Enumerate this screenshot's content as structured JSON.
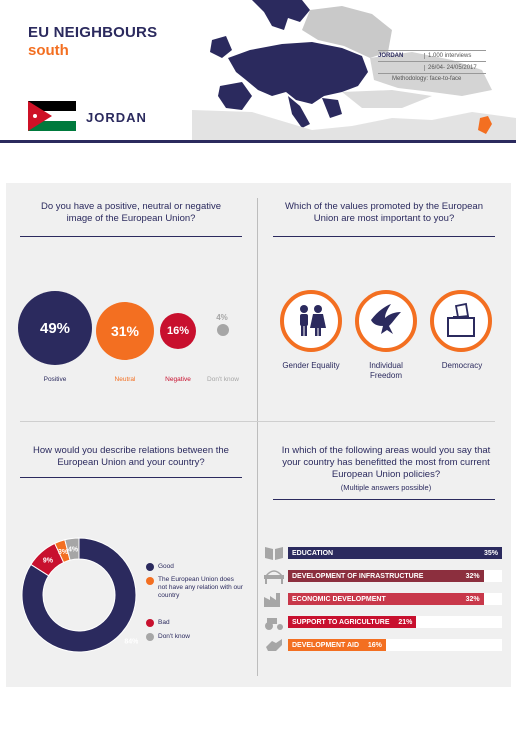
{
  "header": {
    "title_line1": "EU NEIGHBOURS",
    "title_line2": "south",
    "country": "JORDAN",
    "info": {
      "country_label": "JORDAN",
      "interviews": "1.000 interviews",
      "dates": "26/04- 24/05/2017",
      "methodology": "Methodology: face-to-face"
    }
  },
  "image_question": {
    "text": "Do you have a positive, neutral or negative image of the European Union?",
    "items": [
      {
        "label": "Positive",
        "value": "49%",
        "color": "#2b2a5e"
      },
      {
        "label": "Neutral",
        "value": "31%",
        "color": "#f36f21"
      },
      {
        "label": "Negative",
        "value": "16%",
        "color": "#c8102e"
      },
      {
        "label": "Don't know",
        "value": "4%",
        "color": "#a6a6a6"
      }
    ]
  },
  "values_question": {
    "text": "Which of the values promoted by the European Union are most important to you?",
    "items": [
      {
        "label": "Gender Equality",
        "icon": "gender-equality-icon"
      },
      {
        "label": "Individual Freedom",
        "icon": "dove-icon"
      },
      {
        "label": "Democracy",
        "icon": "ballot-box-icon"
      }
    ]
  },
  "relations_question": {
    "text": "How would you describe relations between the European Union and your country?",
    "legend": [
      {
        "label": "Good",
        "color": "#2b2a5e"
      },
      {
        "label": "The European Union does not have any relation with our country",
        "color": "#f36f21"
      },
      {
        "label": "Bad",
        "color": "#c8102e"
      },
      {
        "label": "Don't know",
        "color": "#a6a6a6"
      }
    ]
  },
  "benefit_question": {
    "text": "In which of the following areas would you say that your country has benefitted the most from current European Union policies?",
    "subtext": "(Multiple answers possible)"
  },
  "chart_data": [
    {
      "type": "pie",
      "title": "",
      "slices": [
        {
          "label": "Good",
          "value": 84,
          "display": "84%",
          "color": "#2b2a5e"
        },
        {
          "label": "The European Union does not have any relation with our country",
          "value": 3,
          "display": "3%",
          "color": "#f36f21"
        },
        {
          "label": "Bad",
          "value": 9,
          "display": "9%",
          "color": "#c8102e"
        },
        {
          "label": "Don't know",
          "value": 4,
          "display": "4%",
          "color": "#a6a6a6"
        }
      ]
    },
    {
      "type": "bar",
      "orientation": "horizontal",
      "categories": [
        "EDUCATION",
        "DEVELOPMENT OF INFRASTRUCTURE",
        "ECONOMIC DEVELOPMENT",
        "SUPPORT TO AGRICULTURE",
        "DEVELOPMENT AID"
      ],
      "values": [
        35,
        32,
        32,
        21,
        16
      ],
      "value_labels": [
        "35%",
        "32%",
        "32%",
        "21%",
        "16%"
      ],
      "colors": [
        "#2b2a5e",
        "#8c2f3e",
        "#c8384a",
        "#c8102e",
        "#f36f21"
      ],
      "icons": [
        "book-icon",
        "bridge-icon",
        "factory-icon",
        "tractor-icon",
        "hands-icon"
      ],
      "xlim": [
        0,
        35
      ]
    }
  ]
}
